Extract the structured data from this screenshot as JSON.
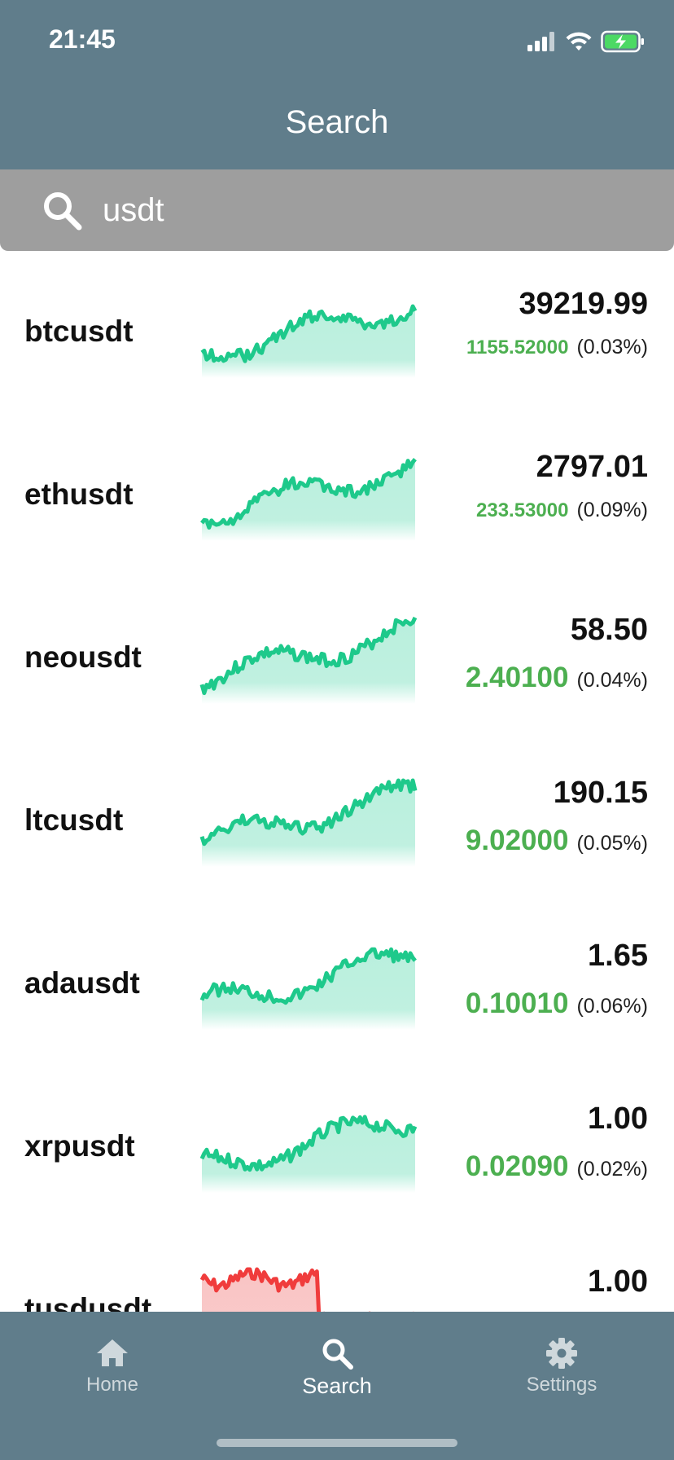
{
  "status_bar": {
    "time": "21:45"
  },
  "header": {
    "title": "Search"
  },
  "search": {
    "value": "usdt",
    "placeholder": ""
  },
  "colors": {
    "header_bg": "#607d8b",
    "search_bg": "#9e9e9e",
    "up": "#1ec98b",
    "up_fill": "#b9efdd",
    "down": "#f03c3c",
    "down_fill": "#f9c4c4",
    "change_text": "#4caf50"
  },
  "results": [
    {
      "symbol": "btcusdt",
      "price": "39219.99",
      "change": "1155.52000",
      "percent": "(0.03%)",
      "trend": "up",
      "change_size": "sm"
    },
    {
      "symbol": "ethusdt",
      "price": "2797.01",
      "change": "233.53000",
      "percent": "(0.09%)",
      "trend": "up",
      "change_size": "sm"
    },
    {
      "symbol": "neousdt",
      "price": "58.50",
      "change": "2.40100",
      "percent": "(0.04%)",
      "trend": "up",
      "change_size": "lg"
    },
    {
      "symbol": "ltcusdt",
      "price": "190.15",
      "change": "9.02000",
      "percent": "(0.05%)",
      "trend": "up",
      "change_size": "lg"
    },
    {
      "symbol": "adausdt",
      "price": "1.65",
      "change": "0.10010",
      "percent": "(0.06%)",
      "trend": "up",
      "change_size": "lg"
    },
    {
      "symbol": "xrpusdt",
      "price": "1.00",
      "change": "0.02090",
      "percent": "(0.02%)",
      "trend": "up",
      "change_size": "lg"
    },
    {
      "symbol": "tusdusdt",
      "price": "1.00",
      "change": "",
      "percent": "",
      "trend": "down",
      "change_size": "lg"
    }
  ],
  "tabs": [
    {
      "label": "Home",
      "icon": "home-icon",
      "active": false
    },
    {
      "label": "Search",
      "icon": "search-icon",
      "active": true
    },
    {
      "label": "Settings",
      "icon": "gear-icon",
      "active": false
    }
  ]
}
